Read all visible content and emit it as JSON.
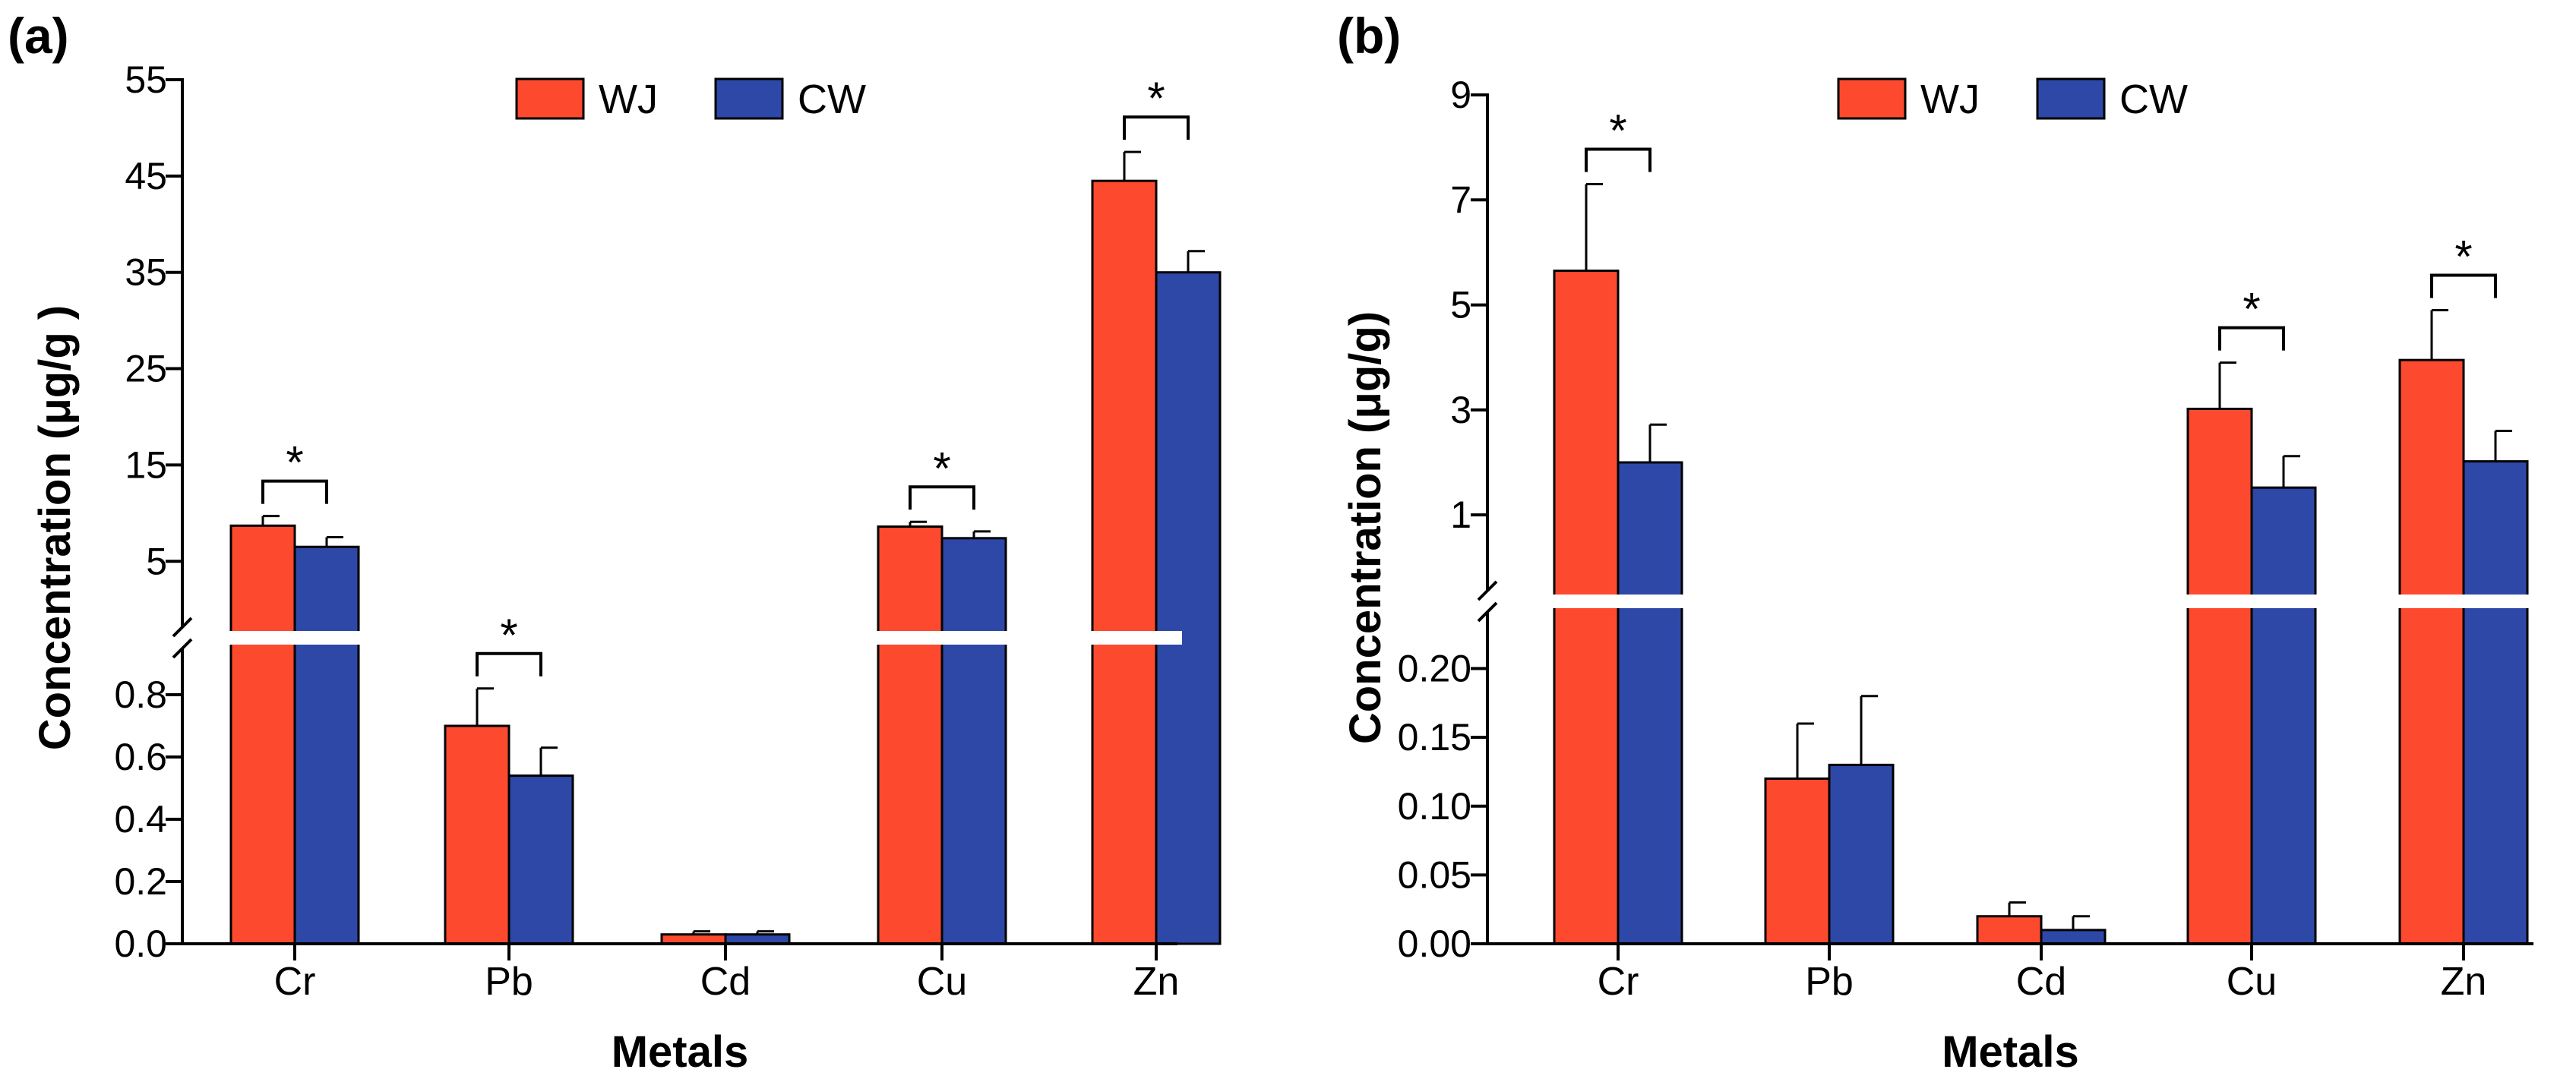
{
  "figure": {
    "panels": [
      "(a)",
      "(b)"
    ]
  },
  "colors": {
    "wj": "#fd4a2f",
    "cw": "#2e48a8",
    "axis": "#000000",
    "break": "#ffffff"
  },
  "chart_data": [
    {
      "type": "bar",
      "panel_label": "(a)",
      "title": "",
      "xlabel": "Metals",
      "ylabel": "Concentration (μg/g )",
      "categories": [
        "Cr",
        "Pb",
        "Cd",
        "Cu",
        "Zn"
      ],
      "legend": [
        "WJ",
        "CW"
      ],
      "legend_position": "top-center",
      "series": [
        {
          "name": "WJ",
          "values": [
            8.7,
            0.7,
            0.03,
            8.6,
            44.5
          ],
          "errors": [
            1.0,
            0.12,
            0.01,
            0.5,
            3.0
          ]
        },
        {
          "name": "CW",
          "values": [
            6.5,
            0.54,
            0.03,
            7.4,
            35.0
          ],
          "errors": [
            1.0,
            0.09,
            0.01,
            0.7,
            2.2
          ]
        }
      ],
      "y_axis_break": {
        "lower": {
          "range": [
            0,
            0.9
          ],
          "ticks": [
            0.0,
            0.2,
            0.4,
            0.6,
            0.8
          ],
          "tick_labels": [
            "0.0",
            "0.2",
            "0.4",
            "0.6",
            "0.8"
          ]
        },
        "upper": {
          "range": [
            1,
            55
          ],
          "ticks": [
            5,
            15,
            25,
            35,
            45,
            55
          ],
          "tick_labels": [
            "5",
            "15",
            "25",
            "35",
            "45",
            "55"
          ]
        }
      },
      "significance": [
        {
          "category": "Cr",
          "label": "*"
        },
        {
          "category": "Pb",
          "label": "*"
        },
        {
          "category": "Cu",
          "label": "*"
        },
        {
          "category": "Zn",
          "label": "*"
        }
      ]
    },
    {
      "type": "bar",
      "panel_label": "(b)",
      "title": "",
      "xlabel": "Metals",
      "ylabel": "Concentration (μg/g)",
      "categories": [
        "Cr",
        "Pb",
        "Cd",
        "Cu",
        "Zn"
      ],
      "legend": [
        "WJ",
        "CW"
      ],
      "legend_position": "top-center",
      "series": [
        {
          "name": "WJ",
          "values": [
            5.65,
            0.12,
            0.02,
            3.02,
            3.95
          ],
          "errors": [
            1.65,
            0.04,
            0.01,
            0.88,
            0.95
          ]
        },
        {
          "name": "CW",
          "values": [
            2.0,
            0.13,
            0.01,
            1.52,
            2.02
          ],
          "errors": [
            0.72,
            0.05,
            0.01,
            0.6,
            0.58
          ]
        }
      ],
      "y_axis_break": {
        "lower": {
          "range": [
            0,
            0.24
          ],
          "ticks": [
            0.0,
            0.05,
            0.1,
            0.15,
            0.2
          ],
          "tick_labels": [
            "0.00",
            "0.05",
            "0.10",
            "0.15",
            "0.20"
          ]
        },
        "upper": {
          "range": [
            0.25,
            9
          ],
          "ticks": [
            1,
            3,
            5,
            7,
            9
          ],
          "tick_labels": [
            "1",
            "3",
            "5",
            "7",
            "9"
          ]
        }
      },
      "significance": [
        {
          "category": "Cr",
          "label": "*"
        },
        {
          "category": "Cu",
          "label": "*"
        },
        {
          "category": "Zn",
          "label": "*"
        }
      ]
    }
  ]
}
